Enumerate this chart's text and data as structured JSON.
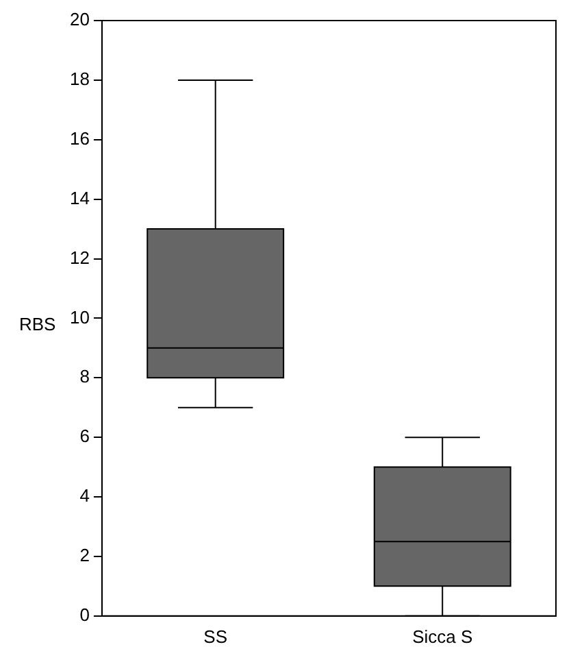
{
  "chart_data": {
    "type": "box",
    "ylabel": "RBS",
    "categories": [
      "SS",
      "Sicca S"
    ],
    "color": "#666666",
    "boxes": [
      {
        "low": 7,
        "q1": 8,
        "median": 9,
        "q3": 13,
        "high": 18
      },
      {
        "low": 0,
        "q1": 1,
        "median": 2.5,
        "q3": 5,
        "high": 6
      }
    ],
    "ylim": [
      0,
      20
    ],
    "yticks": [
      0,
      2,
      4,
      6,
      8,
      10,
      12,
      14,
      16,
      18,
      20
    ],
    "grid": false,
    "legend": false
  }
}
